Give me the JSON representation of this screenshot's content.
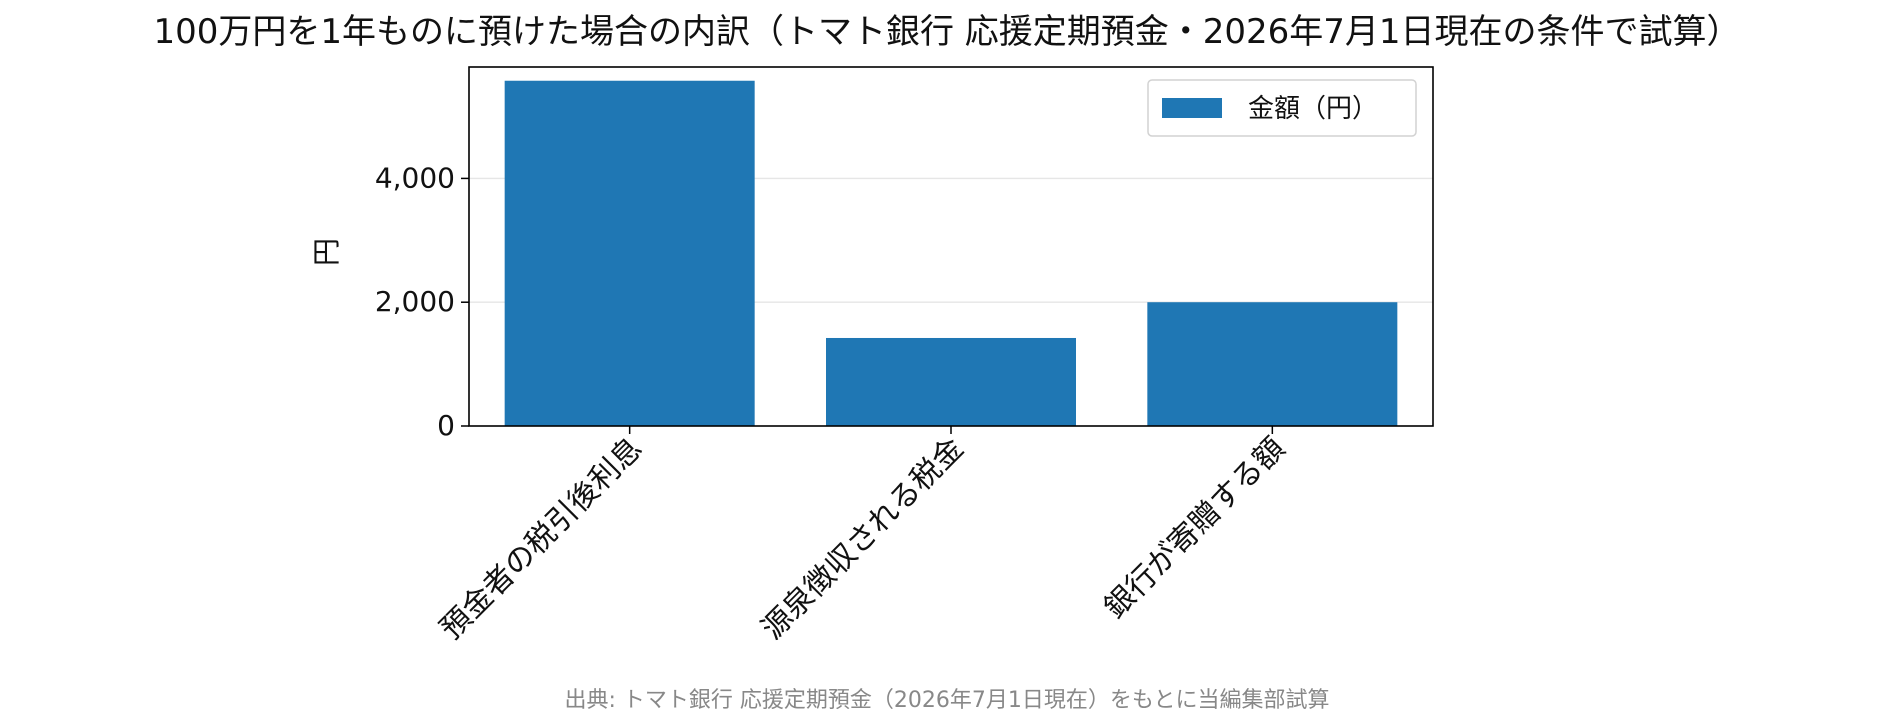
{
  "chart_data": {
    "type": "bar",
    "title": "100万円を1年ものに預けた場合の内訳（トマト銀行 応援定期預金・2026年7月1日現在の条件で試算）",
    "xlabel": "",
    "ylabel": "円",
    "categories": [
      "預金者の税引後利息",
      "源泉徴収される税金",
      "銀行が寄贈する額"
    ],
    "series": [
      {
        "name": "金額（円）",
        "values": [
          5578,
          1422,
          2000
        ]
      }
    ],
    "ylim": [
      0,
      5800
    ],
    "yticks": [
      0,
      2000,
      4000
    ],
    "ytick_labels": [
      "0",
      "2,000",
      "4,000"
    ],
    "grid": "y",
    "legend_position": "top-right",
    "source_note": "出典: トマト銀行 応援定期預金（2026年7月1日現在）をもとに当編集部試算",
    "colors": {
      "bar": "#1f77b4",
      "grid": "#e6e6e6",
      "axis": "#000000",
      "source_text": "#888888"
    }
  }
}
